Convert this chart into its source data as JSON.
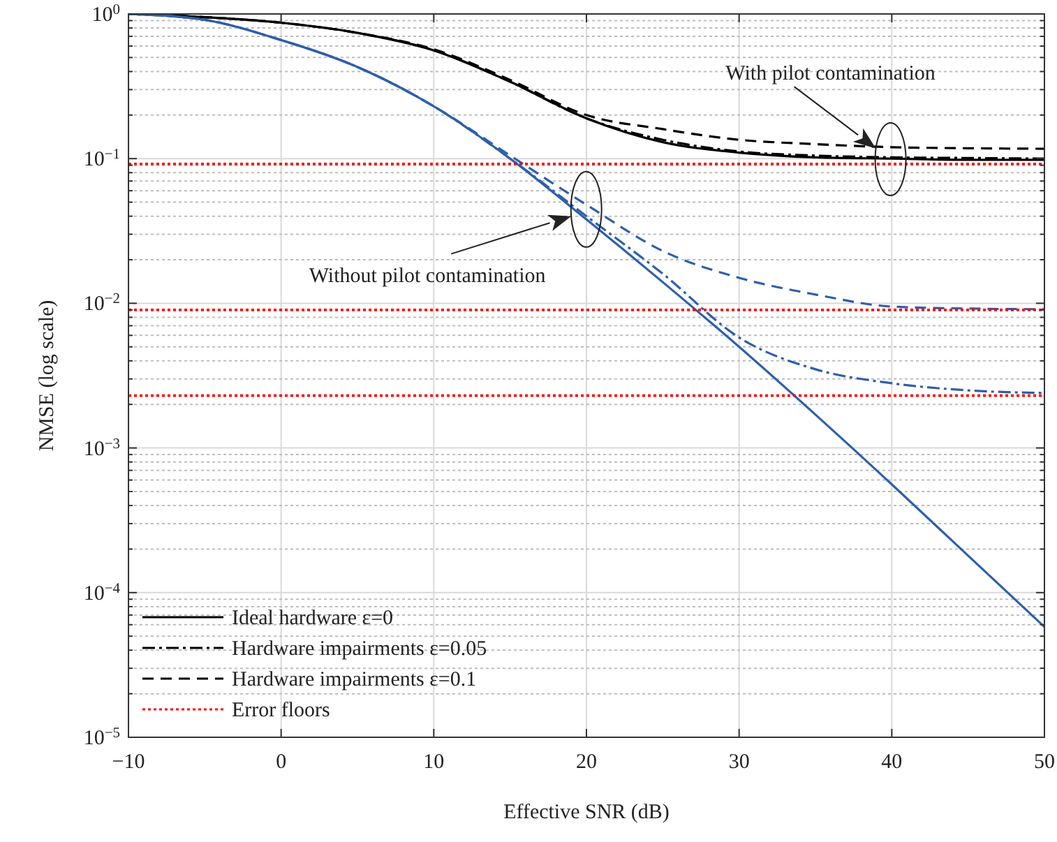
{
  "chart_data": {
    "type": "line",
    "xlabel": "Effective SNR (dB)",
    "ylabel": "NMSE (log scale)",
    "log": "y",
    "grid": true,
    "legend": "bottom left",
    "marker": "none",
    "x": [
      -10,
      -5,
      0,
      5,
      10,
      15,
      20,
      25,
      30,
      35,
      40,
      45,
      50
    ],
    "xlim": [
      -10,
      50
    ],
    "xticks": [
      {
        "value": -10,
        "label": "−10"
      },
      0,
      10,
      20,
      30,
      40,
      50
    ],
    "ylim": [
      1e-05,
      1
    ],
    "yticks": [
      {
        "value": 1e-05,
        "label": "10$^{−5}$"
      },
      {
        "value": 2e-05,
        "label": null
      },
      {
        "value": 3e-05,
        "label": null
      },
      {
        "value": 4e-05,
        "label": null
      },
      {
        "value": 5e-05,
        "label": null
      },
      {
        "value": 6e-05,
        "label": null
      },
      {
        "value": 7e-05,
        "label": null
      },
      {
        "value": 8e-05,
        "label": null
      },
      {
        "value": 9e-05,
        "label": null
      },
      {
        "value": 0.0001,
        "label": "10$^{−4}$"
      },
      {
        "value": 0.0002,
        "label": null
      },
      {
        "value": 0.0003,
        "label": null
      },
      {
        "value": 0.0004,
        "label": null
      },
      {
        "value": 0.0005,
        "label": null
      },
      {
        "value": 0.0006,
        "label": null
      },
      {
        "value": 0.0007,
        "label": null
      },
      {
        "value": 0.0008,
        "label": null
      },
      {
        "value": 0.0009,
        "label": null
      },
      {
        "value": 0.001,
        "label": "10$^{−3}$"
      },
      {
        "value": 0.002,
        "label": null
      },
      {
        "value": 0.003,
        "label": null
      },
      {
        "value": 0.004,
        "label": null
      },
      {
        "value": 0.005,
        "label": null
      },
      {
        "value": 0.006,
        "label": null
      },
      {
        "value": 0.007,
        "label": null
      },
      {
        "value": 0.008,
        "label": null
      },
      {
        "value": 0.009,
        "label": null
      },
      {
        "value": 0.01,
        "label": "10$^{−2}$"
      },
      {
        "value": 0.02,
        "label": null
      },
      {
        "value": 0.03,
        "label": null
      },
      {
        "value": 0.04,
        "label": null
      },
      {
        "value": 0.05,
        "label": null
      },
      {
        "value": 0.06,
        "label": null
      },
      {
        "value": 0.07,
        "label": null
      },
      {
        "value": 0.08,
        "label": null
      },
      {
        "value": 0.09,
        "label": null
      },
      {
        "value": 0.1,
        "label": "10$^{−1}$"
      },
      {
        "value": 0.2,
        "label": null
      },
      {
        "value": 0.3,
        "label": null
      },
      {
        "value": 0.4,
        "label": null
      },
      {
        "value": 0.5,
        "label": null
      },
      {
        "value": 0.6,
        "label": null
      },
      {
        "value": 0.7,
        "label": null
      },
      {
        "value": 0.8,
        "label": null
      },
      {
        "value": 0.9,
        "label": null
      },
      {
        "value": 1,
        "label": "10$^{0}$"
      }
    ],
    "series": [
      {
        "name": "Ideal hardware ε=0",
        "color": "#000000",
        "line_style": "solid",
        "values": [
          1,
          0.95,
          0.87,
          0.74,
          0.56,
          0.34,
          0.19,
          0.13,
          0.11,
          0.102,
          0.1,
          0.098,
          0.098
        ]
      },
      {
        "name": "Hardware impairments ε=0.05",
        "color": "#000000",
        "line_style": "dashdot",
        "values": [
          1,
          0.95,
          0.87,
          0.74,
          0.56,
          0.34,
          0.19,
          0.135,
          0.112,
          0.105,
          0.102,
          0.101,
          0.1
        ]
      },
      {
        "name": "Hardware impairments ε=0.1",
        "color": "#000000",
        "line_style": "dashed",
        "values": [
          1,
          0.95,
          0.87,
          0.74,
          0.57,
          0.35,
          0.2,
          0.16,
          0.135,
          0.126,
          0.12,
          0.118,
          0.117
        ]
      },
      {
        "color": "#2e5fac",
        "line_style": "solid",
        "values": [
          1,
          0.91,
          0.66,
          0.43,
          0.23,
          0.1,
          0.038,
          0.014,
          0.005,
          0.0017,
          0.00056,
          0.00018,
          5.8e-05
        ]
      },
      {
        "color": "#2e5fac",
        "line_style": "dashdot",
        "values": [
          1,
          0.91,
          0.66,
          0.43,
          0.23,
          0.1,
          0.04,
          0.016,
          0.0058,
          0.0035,
          0.0028,
          0.0025,
          0.0024
        ]
      },
      {
        "color": "#2e5fac",
        "line_style": "dashed",
        "values": [
          1,
          0.91,
          0.66,
          0.43,
          0.23,
          0.105,
          0.048,
          0.023,
          0.015,
          0.0115,
          0.0095,
          0.0092,
          0.0091
        ]
      },
      {
        "name": "Error floors",
        "type": "line",
        "color": "#ff0000",
        "line_style": "dotted",
        "values": [
          0.092,
          0.092,
          0.092,
          0.092,
          0.092,
          0.092,
          0.092,
          0.092,
          0.092,
          0.092,
          0.092,
          0.092,
          0.092
        ]
      },
      {
        "type": "line",
        "color": "#ff0000",
        "line_style": "dotted",
        "values": [
          0.009,
          0.009,
          0.009,
          0.009,
          0.009,
          0.009,
          0.009,
          0.009,
          0.009,
          0.009,
          0.009,
          0.009,
          0.009
        ]
      },
      {
        "type": "line",
        "color": "#ff0000",
        "line_style": "dotted",
        "values": [
          0.0023,
          0.0023,
          0.0023,
          0.0023,
          0.0023,
          0.0023,
          0.0023,
          0.0023,
          0.0023,
          0.0023,
          0.0023,
          0.0023,
          0.0023
        ]
      }
    ],
    "annotations": [
      "With pilot contamination",
      {
        "text": "Without pilot contamination",
        "x": 19,
        "y": 0.04
      }
    ]
  }
}
